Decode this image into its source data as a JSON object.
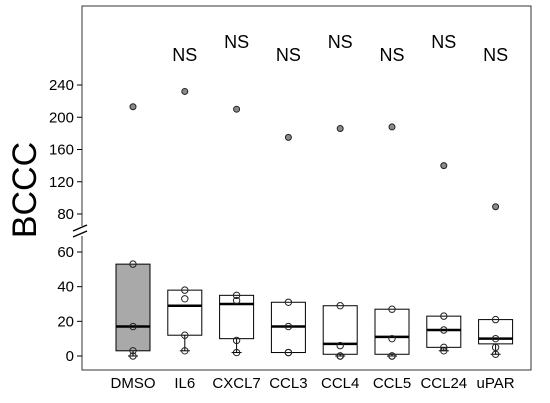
{
  "chart_data": {
    "type": "box",
    "ylabel": "BCCC",
    "categories": [
      "DMSO",
      "IL6",
      "CXCL7",
      "CCL3",
      "CCL4",
      "CCL5",
      "CCL24",
      "uPAR"
    ],
    "boxes": [
      {
        "category": "DMSO",
        "q1": 3,
        "median": 17,
        "q3": 53,
        "whisker_low": 0,
        "whisker_high": 53,
        "filled": true,
        "points": [
          53,
          17,
          3,
          0
        ],
        "outlier": 213
      },
      {
        "category": "IL6",
        "q1": 12,
        "median": 29,
        "q3": 38,
        "whisker_low": 3,
        "whisker_high": 38,
        "filled": false,
        "points": [
          38,
          33,
          12,
          3
        ],
        "outlier": 232
      },
      {
        "category": "CXCL7",
        "q1": 10,
        "median": 30,
        "q3": 35,
        "whisker_low": 2,
        "whisker_high": 35,
        "filled": false,
        "points": [
          35,
          32,
          9,
          2
        ],
        "outlier": 210
      },
      {
        "category": "CCL3",
        "q1": 2,
        "median": 17,
        "q3": 31,
        "whisker_low": 2,
        "whisker_high": 31,
        "filled": false,
        "points": [
          31,
          17,
          2,
          2
        ],
        "outlier": 175
      },
      {
        "category": "CCL4",
        "q1": 1,
        "median": 7,
        "q3": 29,
        "whisker_low": 0,
        "whisker_high": 29,
        "filled": false,
        "points": [
          29,
          6,
          0,
          0
        ],
        "outlier": 186
      },
      {
        "category": "CCL5",
        "q1": 1,
        "median": 11,
        "q3": 27,
        "whisker_low": 0,
        "whisker_high": 27,
        "filled": false,
        "points": [
          27,
          10,
          0,
          0
        ],
        "outlier": 188
      },
      {
        "category": "CCL24",
        "q1": 5,
        "median": 15,
        "q3": 23,
        "whisker_low": 3,
        "whisker_high": 23,
        "filled": false,
        "points": [
          23,
          15,
          5,
          3
        ],
        "outlier": 140
      },
      {
        "category": "uPAR",
        "q1": 7,
        "median": 10,
        "q3": 21,
        "whisker_low": 1,
        "whisker_high": 21,
        "filled": false,
        "points": [
          21,
          10,
          5,
          1
        ],
        "outlier": 89
      }
    ],
    "annotations": [
      {
        "category": "IL6",
        "text": "NS",
        "level": "low"
      },
      {
        "category": "CXCL7",
        "text": "NS",
        "level": "high"
      },
      {
        "category": "CCL3",
        "text": "NS",
        "level": "low"
      },
      {
        "category": "CCL4",
        "text": "NS",
        "level": "high"
      },
      {
        "category": "CCL5",
        "text": "NS",
        "level": "low"
      },
      {
        "category": "CCL24",
        "text": "NS",
        "level": "high"
      },
      {
        "category": "uPAR",
        "text": "NS",
        "level": "low"
      }
    ],
    "y_axis": {
      "broken": true,
      "lower_ticks": [
        0,
        20,
        40,
        60
      ],
      "upper_ticks": [
        80,
        120,
        160,
        200,
        240
      ],
      "lower_range": [
        -5,
        62
      ],
      "upper_range": [
        60,
        260
      ]
    },
    "grid": false,
    "legend": "none",
    "colors": {
      "filled_box": "#a9a9a9",
      "outline": "#000000",
      "outlier_fill": "#8a8a8a"
    }
  }
}
